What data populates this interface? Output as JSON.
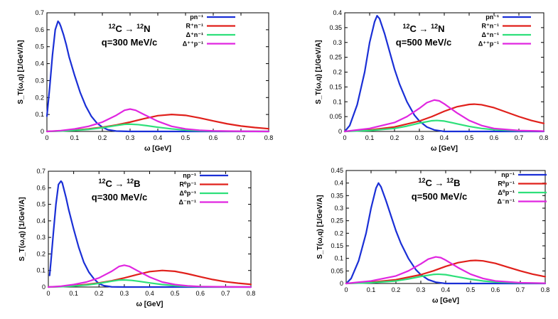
{
  "chart_data": [
    {
      "type": "line",
      "reaction": "12C → 12N",
      "momentum": "q=300 MeV/c",
      "xlabel": "ω [GeV]",
      "ylabel": "S_T(ω,q) [1/GeV/A]",
      "xlim": [
        0,
        0.8
      ],
      "ylim": [
        0,
        0.7
      ],
      "xticks": [
        "0",
        "0.1",
        "0.2",
        "0.3",
        "0.4",
        "0.5",
        "0.6",
        "0.7",
        "0.8"
      ],
      "yticks": [
        "0",
        "0.1",
        "0.2",
        "0.3",
        "0.4",
        "0.5",
        "0.6",
        "0.7"
      ],
      "series": [
        {
          "name": "pn⁻¹",
          "color": "#1a2fd6",
          "x": [
            0,
            0.01,
            0.02,
            0.03,
            0.04,
            0.045,
            0.05,
            0.06,
            0.07,
            0.08,
            0.1,
            0.12,
            0.14,
            0.16,
            0.18,
            0.2,
            0.22,
            0.25,
            0.3,
            0.4,
            0.8
          ],
          "values": [
            0.09,
            0.26,
            0.45,
            0.6,
            0.65,
            0.64,
            0.62,
            0.57,
            0.51,
            0.44,
            0.33,
            0.23,
            0.15,
            0.09,
            0.05,
            0.025,
            0.01,
            0.002,
            0,
            0,
            0
          ]
        },
        {
          "name": "R⁺n⁻¹",
          "color": "#e0201b",
          "x": [
            0,
            0.05,
            0.1,
            0.15,
            0.2,
            0.25,
            0.3,
            0.35,
            0.4,
            0.45,
            0.5,
            0.55,
            0.6,
            0.65,
            0.7,
            0.75,
            0.8
          ],
          "values": [
            0,
            0.003,
            0.008,
            0.015,
            0.025,
            0.038,
            0.055,
            0.075,
            0.093,
            0.1,
            0.095,
            0.08,
            0.062,
            0.045,
            0.032,
            0.023,
            0.016
          ]
        },
        {
          "name": "Δ⁺n⁻¹",
          "color": "#2ee07a",
          "x": [
            0,
            0.05,
            0.1,
            0.15,
            0.2,
            0.25,
            0.28,
            0.3,
            0.33,
            0.36,
            0.4,
            0.45,
            0.5,
            0.55,
            0.6,
            0.7,
            0.8
          ],
          "values": [
            0,
            0.002,
            0.006,
            0.012,
            0.022,
            0.035,
            0.042,
            0.043,
            0.04,
            0.034,
            0.025,
            0.015,
            0.008,
            0.004,
            0.002,
            0.001,
            0
          ]
        },
        {
          "name": "Δ⁺⁺p⁻¹",
          "color": "#e026e0",
          "x": [
            0,
            0.05,
            0.1,
            0.15,
            0.2,
            0.25,
            0.28,
            0.3,
            0.32,
            0.35,
            0.4,
            0.45,
            0.5,
            0.55,
            0.6,
            0.7,
            0.8
          ],
          "values": [
            0,
            0.005,
            0.015,
            0.03,
            0.055,
            0.095,
            0.125,
            0.132,
            0.125,
            0.1,
            0.06,
            0.03,
            0.015,
            0.007,
            0.003,
            0.001,
            0
          ]
        }
      ]
    },
    {
      "type": "line",
      "reaction": "12C → 12N",
      "momentum": "q=500 MeV/c",
      "xlabel": "ω [GeV]",
      "ylabel": "S_T(ω,q) [1/GeV/A]",
      "xlim": [
        0,
        0.8
      ],
      "ylim": [
        0,
        0.4
      ],
      "xticks": [
        "0",
        "0.1",
        "0.2",
        "0.3",
        "0.4",
        "0.5",
        "0.6",
        "0.7",
        "0.8"
      ],
      "yticks": [
        "0",
        "0.05",
        "0.1",
        "0.15",
        "0.2",
        "0.25",
        "0.3",
        "0.35",
        "0.4"
      ],
      "series": [
        {
          "name": "pn⁻¹",
          "color": "#1a2fd6",
          "x": [
            0,
            0.02,
            0.05,
            0.08,
            0.1,
            0.12,
            0.13,
            0.14,
            0.16,
            0.18,
            0.2,
            0.22,
            0.25,
            0.28,
            0.3,
            0.33,
            0.36,
            0.4,
            0.5,
            0.8
          ],
          "values": [
            0,
            0.02,
            0.09,
            0.2,
            0.3,
            0.37,
            0.39,
            0.38,
            0.33,
            0.27,
            0.21,
            0.16,
            0.1,
            0.055,
            0.035,
            0.015,
            0.005,
            0,
            0,
            0
          ]
        },
        {
          "name": "R⁺n⁻¹",
          "color": "#e0201b",
          "x": [
            0,
            0.1,
            0.2,
            0.3,
            0.35,
            0.4,
            0.45,
            0.5,
            0.52,
            0.55,
            0.6,
            0.65,
            0.7,
            0.75,
            0.8
          ],
          "values": [
            0,
            0.005,
            0.015,
            0.035,
            0.05,
            0.068,
            0.083,
            0.091,
            0.092,
            0.09,
            0.08,
            0.065,
            0.05,
            0.037,
            0.027
          ]
        },
        {
          "name": "Δ⁺n⁻¹",
          "color": "#2ee07a",
          "x": [
            0,
            0.1,
            0.2,
            0.25,
            0.3,
            0.35,
            0.37,
            0.4,
            0.45,
            0.5,
            0.55,
            0.6,
            0.7,
            0.8
          ],
          "values": [
            0,
            0.003,
            0.01,
            0.018,
            0.028,
            0.036,
            0.037,
            0.035,
            0.026,
            0.017,
            0.01,
            0.006,
            0.002,
            0.001
          ]
        },
        {
          "name": "Δ⁺⁺p⁻¹",
          "color": "#e026e0",
          "x": [
            0,
            0.1,
            0.2,
            0.25,
            0.3,
            0.33,
            0.36,
            0.38,
            0.4,
            0.45,
            0.5,
            0.55,
            0.6,
            0.7,
            0.8
          ],
          "values": [
            0,
            0.01,
            0.03,
            0.05,
            0.078,
            0.097,
            0.106,
            0.103,
            0.093,
            0.063,
            0.037,
            0.02,
            0.01,
            0.003,
            0.001
          ]
        }
      ]
    },
    {
      "type": "line",
      "reaction": "12C → 12B",
      "momentum": "q=300 MeV/c",
      "xlabel": "ω [GeV]",
      "ylabel": "S_T(ω,q) [1/GeV/A]",
      "xlim": [
        0,
        0.8
      ],
      "ylim": [
        0,
        0.7
      ],
      "xticks": [
        "0",
        "0.1",
        "0.2",
        "0.3",
        "0.4",
        "0.5",
        "0.6",
        "0.7",
        "0.8"
      ],
      "yticks": [
        "0",
        "0.1",
        "0.2",
        "0.3",
        "0.4",
        "0.5",
        "0.6",
        "0.7"
      ],
      "series": [
        {
          "name": "np⁻¹",
          "color": "#1a2fd6",
          "x": [
            0.005,
            0.01,
            0.02,
            0.03,
            0.04,
            0.05,
            0.055,
            0.06,
            0.07,
            0.08,
            0.1,
            0.12,
            0.14,
            0.16,
            0.18,
            0.2,
            0.22,
            0.25,
            0.3,
            0.4,
            0.8
          ],
          "values": [
            0.07,
            0.15,
            0.33,
            0.5,
            0.62,
            0.64,
            0.63,
            0.6,
            0.54,
            0.47,
            0.35,
            0.24,
            0.15,
            0.09,
            0.05,
            0.02,
            0.008,
            0.001,
            0,
            0,
            0
          ]
        },
        {
          "name": "R⁰p⁻¹",
          "color": "#e0201b",
          "x": [
            0,
            0.05,
            0.1,
            0.15,
            0.2,
            0.25,
            0.3,
            0.35,
            0.4,
            0.45,
            0.5,
            0.55,
            0.6,
            0.65,
            0.7,
            0.75,
            0.8
          ],
          "values": [
            0,
            0.003,
            0.008,
            0.015,
            0.025,
            0.038,
            0.055,
            0.075,
            0.093,
            0.1,
            0.095,
            0.08,
            0.062,
            0.045,
            0.032,
            0.023,
            0.016
          ]
        },
        {
          "name": "Δ⁰p⁻¹",
          "color": "#2ee07a",
          "x": [
            0,
            0.05,
            0.1,
            0.15,
            0.2,
            0.25,
            0.28,
            0.3,
            0.33,
            0.36,
            0.4,
            0.45,
            0.5,
            0.55,
            0.6,
            0.7,
            0.8
          ],
          "values": [
            0,
            0.002,
            0.006,
            0.012,
            0.022,
            0.035,
            0.042,
            0.043,
            0.04,
            0.034,
            0.025,
            0.015,
            0.008,
            0.004,
            0.002,
            0.001,
            0
          ]
        },
        {
          "name": "Δ⁻n⁻¹",
          "color": "#e026e0",
          "x": [
            0,
            0.05,
            0.1,
            0.15,
            0.2,
            0.25,
            0.28,
            0.3,
            0.32,
            0.35,
            0.4,
            0.45,
            0.5,
            0.55,
            0.6,
            0.7,
            0.8
          ],
          "values": [
            0,
            0.005,
            0.015,
            0.03,
            0.055,
            0.095,
            0.125,
            0.132,
            0.125,
            0.1,
            0.06,
            0.03,
            0.015,
            0.007,
            0.003,
            0.001,
            0
          ]
        }
      ]
    },
    {
      "type": "line",
      "reaction": "12C → 12B",
      "momentum": "q=500 MeV/c",
      "xlabel": "ω [GeV]",
      "ylabel": "S_T(ω,q) [1/GeV/A]",
      "xlim": [
        0,
        0.8
      ],
      "ylim": [
        0,
        0.45
      ],
      "xticks": [
        "0",
        "0.1",
        "0.2",
        "0.3",
        "0.4",
        "0.5",
        "0.6",
        "0.7",
        "0.8"
      ],
      "yticks": [
        "0",
        "0.05",
        "0.1",
        "0.15",
        "0.2",
        "0.25",
        "0.3",
        "0.35",
        "0.4",
        "0.45"
      ],
      "series": [
        {
          "name": "np⁻¹",
          "color": "#1a2fd6",
          "x": [
            0,
            0.02,
            0.05,
            0.08,
            0.1,
            0.12,
            0.13,
            0.14,
            0.16,
            0.18,
            0.2,
            0.22,
            0.25,
            0.28,
            0.3,
            0.33,
            0.36,
            0.4,
            0.5,
            0.8
          ],
          "values": [
            0,
            0.02,
            0.09,
            0.2,
            0.3,
            0.38,
            0.4,
            0.385,
            0.33,
            0.27,
            0.21,
            0.16,
            0.1,
            0.055,
            0.035,
            0.015,
            0.005,
            0,
            0,
            0
          ]
        },
        {
          "name": "R⁰p⁻¹",
          "color": "#e0201b",
          "x": [
            0,
            0.1,
            0.2,
            0.3,
            0.35,
            0.4,
            0.45,
            0.5,
            0.52,
            0.55,
            0.6,
            0.65,
            0.7,
            0.75,
            0.8
          ],
          "values": [
            0,
            0.005,
            0.015,
            0.035,
            0.05,
            0.068,
            0.083,
            0.091,
            0.092,
            0.09,
            0.08,
            0.065,
            0.05,
            0.037,
            0.027
          ]
        },
        {
          "name": "Δ⁰p⁻¹",
          "color": "#2ee07a",
          "x": [
            0,
            0.1,
            0.2,
            0.25,
            0.3,
            0.35,
            0.37,
            0.4,
            0.45,
            0.5,
            0.55,
            0.6,
            0.7,
            0.8
          ],
          "values": [
            0,
            0.003,
            0.01,
            0.018,
            0.028,
            0.036,
            0.037,
            0.035,
            0.026,
            0.017,
            0.01,
            0.006,
            0.002,
            0.001
          ]
        },
        {
          "name": "Δ⁻n⁻¹",
          "color": "#e026e0",
          "x": [
            0,
            0.1,
            0.2,
            0.25,
            0.3,
            0.33,
            0.36,
            0.38,
            0.4,
            0.45,
            0.5,
            0.55,
            0.6,
            0.7,
            0.8
          ],
          "values": [
            0,
            0.01,
            0.03,
            0.05,
            0.078,
            0.097,
            0.106,
            0.103,
            0.093,
            0.063,
            0.037,
            0.02,
            0.01,
            0.003,
            0.001
          ]
        }
      ]
    }
  ]
}
